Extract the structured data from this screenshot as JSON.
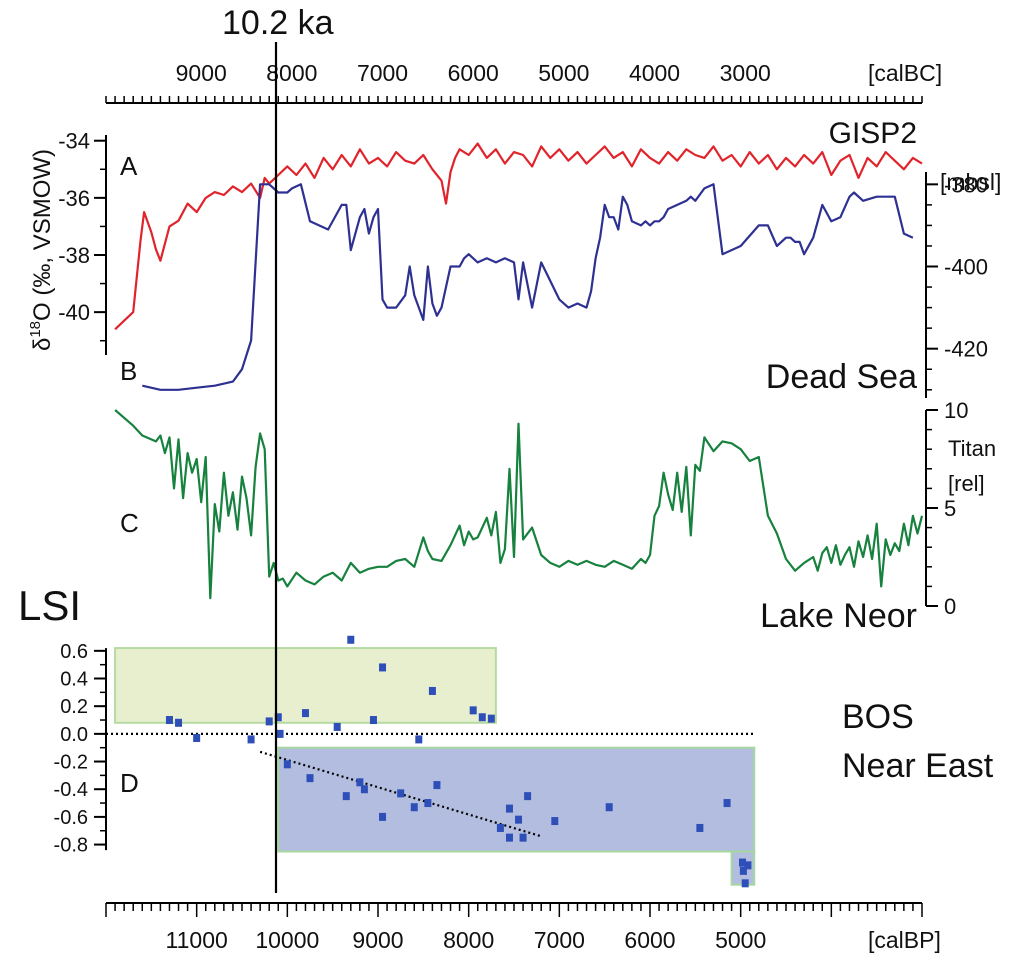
{
  "chart_data": {
    "type": "line",
    "event_marker": {
      "label": "10.2 ka",
      "x_calBP": 10300
    },
    "top_axis": {
      "unit": "[calBC]",
      "ticks": [
        9000,
        8000,
        7000,
        6000,
        5000,
        4000,
        3000
      ]
    },
    "bottom_axis": {
      "unit": "[calBP]",
      "ticks": [
        11000,
        10000,
        9000,
        8000,
        7000,
        6000,
        5000
      ],
      "range": [
        12000,
        3000
      ]
    },
    "panels": [
      {
        "letter": "A",
        "series_name": "GISP2",
        "ylabel_prefix": "δ",
        "ylabel_sup": "18",
        "ylabel_main": "O (‰, VSMOW)",
        "color": "#e0242b",
        "yticks": [
          -34,
          -36,
          -38,
          -40
        ],
        "ylim": [
          -41.5,
          -33.8
        ],
        "x": [
          11900,
          11800,
          11700,
          11620,
          11580,
          11500,
          11450,
          11400,
          11300,
          11200,
          11100,
          11000,
          10900,
          10800,
          10700,
          10600,
          10500,
          10400,
          10300,
          10250,
          10200,
          10100,
          10000,
          9900,
          9800,
          9700,
          9600,
          9500,
          9400,
          9300,
          9200,
          9100,
          9000,
          8900,
          8800,
          8700,
          8600,
          8500,
          8400,
          8300,
          8250,
          8200,
          8150,
          8100,
          8000,
          7900,
          7800,
          7700,
          7600,
          7500,
          7400,
          7300,
          7200,
          7100,
          7000,
          6900,
          6800,
          6700,
          6600,
          6500,
          6400,
          6300,
          6200,
          6100,
          6000,
          5900,
          5800,
          5700,
          5600,
          5500,
          5400,
          5300,
          5200,
          5100,
          5000,
          4900,
          4800,
          4700,
          4600,
          4500,
          4400,
          4300,
          4200,
          4100,
          4000,
          3900,
          3800,
          3700,
          3600,
          3500,
          3400,
          3300,
          3200,
          3100,
          3000
        ],
        "y": [
          -40.6,
          -40.3,
          -40.0,
          -37.5,
          -36.5,
          -37.2,
          -37.8,
          -38.2,
          -37.0,
          -36.8,
          -36.2,
          -36.5,
          -36.0,
          -35.8,
          -35.9,
          -35.6,
          -35.8,
          -35.5,
          -36.0,
          -35.3,
          -35.5,
          -35.2,
          -34.9,
          -35.2,
          -34.8,
          -35.3,
          -34.6,
          -35.0,
          -34.5,
          -34.9,
          -34.3,
          -34.8,
          -34.6,
          -34.9,
          -34.4,
          -34.7,
          -34.8,
          -34.5,
          -35.0,
          -35.4,
          -36.2,
          -35.1,
          -34.6,
          -34.3,
          -34.5,
          -34.1,
          -34.6,
          -34.3,
          -34.8,
          -34.4,
          -34.5,
          -34.9,
          -34.2,
          -34.6,
          -34.3,
          -34.7,
          -34.4,
          -34.8,
          -34.5,
          -34.2,
          -34.6,
          -34.4,
          -34.9,
          -34.3,
          -34.6,
          -34.8,
          -34.4,
          -34.7,
          -34.3,
          -34.5,
          -34.6,
          -34.2,
          -34.7,
          -34.5,
          -34.9,
          -34.4,
          -34.8,
          -34.5,
          -35.0,
          -34.6,
          -34.9,
          -34.5,
          -34.8,
          -34.4,
          -35.2,
          -34.7,
          -34.5,
          -35.3,
          -34.6,
          -34.9,
          -34.4,
          -34.7,
          -35.0,
          -34.6,
          -34.8
        ]
      },
      {
        "letter": "B",
        "series_name": "Dead Sea",
        "unit": "[mbsl]",
        "color": "#2e3192",
        "yticks": [
          -380,
          -400,
          -420
        ],
        "ylim": [
          -432,
          -377
        ],
        "x": [
          11600,
          11400,
          11200,
          11000,
          10800,
          10600,
          10500,
          10400,
          10300,
          10200,
          10100,
          10050,
          10000,
          9950,
          9850,
          9750,
          9550,
          9400,
          9350,
          9300,
          9200,
          9150,
          9100,
          9050,
          9000,
          8950,
          8900,
          8800,
          8700,
          8650,
          8600,
          8500,
          8450,
          8400,
          8350,
          8300,
          8200,
          8150,
          8100,
          8050,
          8000,
          7950,
          7900,
          7800,
          7700,
          7600,
          7500,
          7450,
          7400,
          7300,
          7200,
          7000,
          6900,
          6800,
          6700,
          6650,
          6600,
          6550,
          6500,
          6450,
          6400,
          6350,
          6300,
          6250,
          6200,
          6100,
          6050,
          6000,
          5950,
          5900,
          5850,
          5800,
          5700,
          5600,
          5550,
          5500,
          5400,
          5300,
          5200,
          5000,
          4800,
          4700,
          4600,
          4500,
          4450,
          4400,
          4350,
          4300,
          4200,
          4100,
          4000,
          3900,
          3800,
          3750,
          3650,
          3500,
          3300,
          3200,
          3100
        ],
        "y": [
          -429,
          -430,
          -430,
          -429.5,
          -429,
          -428,
          -425,
          -418,
          -380,
          -380,
          -382,
          -382,
          -382,
          -381,
          -380,
          -389,
          -391,
          -385,
          -385,
          -396,
          -388,
          -386,
          -392,
          -388,
          -386,
          -408,
          -410,
          -410,
          -407,
          -400,
          -407,
          -413,
          -400,
          -409,
          -412,
          -410,
          -400,
          -400,
          -400,
          -398,
          -397,
          -398,
          -399,
          -398,
          -399,
          -398,
          -399,
          -408,
          -399,
          -410,
          -399,
          -408,
          -410,
          -409,
          -410,
          -406,
          -398,
          -393,
          -385,
          -388,
          -388,
          -391,
          -383,
          -385,
          -389,
          -390,
          -389,
          -390,
          -389,
          -389,
          -388,
          -386,
          -385,
          -384,
          -383,
          -384,
          -381,
          -380,
          -397,
          -395,
          -390,
          -390,
          -395,
          -393,
          -393,
          -394,
          -394,
          -397,
          -393,
          -385,
          -389,
          -388,
          -383,
          -382,
          -384,
          -383,
          -383,
          -392,
          -393
        ]
      },
      {
        "letter": "C",
        "series_name": "Lake Neor",
        "unit_line1": "Titan",
        "unit_line2": "[rel]",
        "color": "#17813e",
        "yticks": [
          10,
          5,
          0
        ],
        "ylim": [
          0,
          10
        ],
        "x": [
          11900,
          11800,
          11700,
          11600,
          11500,
          11450,
          11400,
          11350,
          11300,
          11250,
          11200,
          11150,
          11100,
          11050,
          11000,
          10950,
          10900,
          10850,
          10800,
          10750,
          10700,
          10650,
          10600,
          10550,
          10500,
          10450,
          10400,
          10350,
          10300,
          10250,
          10200,
          10150,
          10100,
          10050,
          10000,
          9900,
          9800,
          9700,
          9600,
          9500,
          9400,
          9300,
          9200,
          9100,
          9000,
          8900,
          8800,
          8700,
          8600,
          8500,
          8450,
          8400,
          8300,
          8200,
          8100,
          8050,
          8000,
          7950,
          7900,
          7800,
          7750,
          7700,
          7650,
          7600,
          7550,
          7500,
          7450,
          7400,
          7300,
          7200,
          7100,
          7000,
          6900,
          6800,
          6700,
          6600,
          6500,
          6400,
          6300,
          6200,
          6100,
          6050,
          6000,
          5950,
          5900,
          5850,
          5800,
          5750,
          5700,
          5650,
          5600,
          5550,
          5500,
          5450,
          5400,
          5300,
          5200,
          5100,
          5000,
          4900,
          4800,
          4700,
          4600,
          4500,
          4400,
          4300,
          4200,
          4150,
          4100,
          4050,
          4000,
          3950,
          3900,
          3850,
          3800,
          3750,
          3700,
          3650,
          3600,
          3550,
          3500,
          3450,
          3400,
          3350,
          3300,
          3250,
          3200,
          3150,
          3100,
          3050,
          3000
        ],
        "y": [
          10,
          9.6,
          9.2,
          8.7,
          8.5,
          8.4,
          8.7,
          7.8,
          8.6,
          6.0,
          8.5,
          5.5,
          7.8,
          6.8,
          7.5,
          5.3,
          7.6,
          0.4,
          5.2,
          3.8,
          6.8,
          4.6,
          5.8,
          3.9,
          6.6,
          5.5,
          3.6,
          7.1,
          8.8,
          8.0,
          1.5,
          2.2,
          1.3,
          1.4,
          1.0,
          1.7,
          1.3,
          1.1,
          1.5,
          1.7,
          1.3,
          2.2,
          1.7,
          1.9,
          2.0,
          2.0,
          2.3,
          2.4,
          2.0,
          3.5,
          2.8,
          2.4,
          2.3,
          3.1,
          4.1,
          3.1,
          3.8,
          3.4,
          3.5,
          4.5,
          3.6,
          4.8,
          2.2,
          2.9,
          7.0,
          2.5,
          9.3,
          3.4,
          4.0,
          2.6,
          2.2,
          2.0,
          2.3,
          2.1,
          2.3,
          2.1,
          2.0,
          2.3,
          2.1,
          1.9,
          2.4,
          2.2,
          2.6,
          4.6,
          5.1,
          6.8,
          5.7,
          4.9,
          6.8,
          4.8,
          7.1,
          3.6,
          7.2,
          6.9,
          8.6,
          7.9,
          8.4,
          8.3,
          8.0,
          7.4,
          7.6,
          4.6,
          3.7,
          2.4,
          1.8,
          2.2,
          2.5,
          1.8,
          2.7,
          3.0,
          2.2,
          3.1,
          2.1,
          2.6,
          3.0,
          2.0,
          3.3,
          2.5,
          3.6,
          2.4,
          4.2,
          1.0,
          3.4,
          2.6,
          3.2,
          2.8,
          4.2,
          3.1,
          4.6,
          3.7,
          4.6
        ]
      }
    ],
    "lsi": {
      "letter": "D",
      "title": "LSI",
      "yticks": [
        0.6,
        0.4,
        0.2,
        0.0,
        -0.2,
        -0.4,
        -0.6,
        -0.8
      ],
      "ylim": [
        -1.15,
        0.7
      ],
      "bos": {
        "label": "BOS",
        "box": {
          "x": [
            11900,
            7700
          ],
          "y": [
            0.08,
            0.62
          ]
        }
      },
      "near_east": {
        "label": "Near East",
        "box_main": {
          "x": [
            10100,
            4850
          ],
          "y": [
            -0.85,
            -0.1
          ]
        },
        "box_tail": {
          "x": [
            5100,
            4850
          ],
          "y": [
            -1.09,
            -0.85
          ]
        }
      },
      "points": [
        [
          11300,
          0.1
        ],
        [
          11200,
          0.08
        ],
        [
          11000,
          -0.03
        ],
        [
          10400,
          -0.04
        ],
        [
          10200,
          0.09
        ],
        [
          10100,
          0.12
        ],
        [
          10080,
          0.0
        ],
        [
          9300,
          0.68
        ],
        [
          8950,
          0.48
        ],
        [
          9050,
          0.1
        ],
        [
          8400,
          0.31
        ],
        [
          8550,
          -0.04
        ],
        [
          7950,
          0.17
        ],
        [
          7850,
          0.12
        ],
        [
          7750,
          0.11
        ],
        [
          9450,
          0.05
        ],
        [
          9800,
          0.15
        ],
        [
          10000,
          -0.22
        ],
        [
          9750,
          -0.32
        ],
        [
          9350,
          -0.45
        ],
        [
          9200,
          -0.35
        ],
        [
          9150,
          -0.4
        ],
        [
          8950,
          -0.6
        ],
        [
          8750,
          -0.43
        ],
        [
          8600,
          -0.53
        ],
        [
          8450,
          -0.5
        ],
        [
          8350,
          -0.37
        ],
        [
          7650,
          -0.68
        ],
        [
          7550,
          -0.75
        ],
        [
          7550,
          -0.54
        ],
        [
          7450,
          -0.62
        ],
        [
          7400,
          -0.75
        ],
        [
          7350,
          -0.45
        ],
        [
          7050,
          -0.63
        ],
        [
          6450,
          -0.53
        ],
        [
          5450,
          -0.68
        ],
        [
          5150,
          -0.5
        ],
        [
          4980,
          -0.93
        ],
        [
          4970,
          -0.99
        ],
        [
          4950,
          -1.08
        ],
        [
          4920,
          -0.95
        ]
      ],
      "trend": {
        "x": [
          10300,
          7200
        ],
        "y": [
          -0.13,
          -0.74
        ]
      },
      "zero_line": {
        "x": [
          12000,
          4850
        ],
        "y": 0.0
      }
    }
  }
}
